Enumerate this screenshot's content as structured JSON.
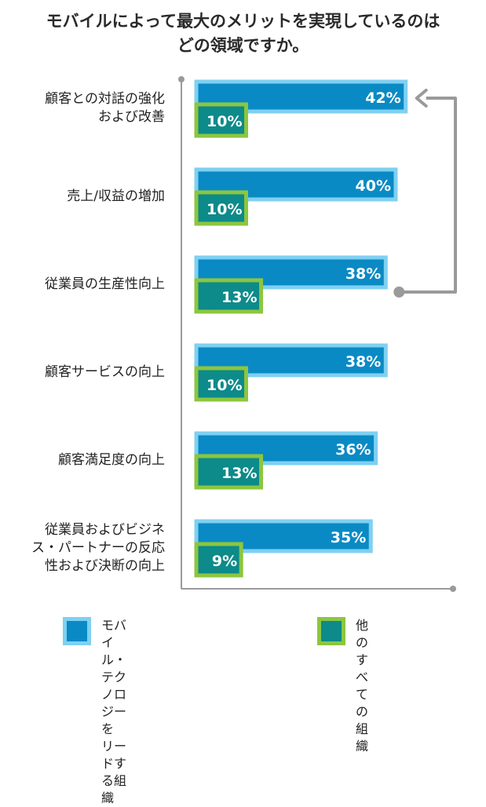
{
  "chart_data": {
    "type": "bar",
    "title_lines": [
      "モバイルによって最大のメリットを実現しているのは",
      "どの領域ですか。"
    ],
    "categories": [
      "顧客との対話の強化\nおよび改善",
      "売上/収益の増加",
      "従業員の生産性向上",
      "顧客サービスの向上",
      "顧客満足度の向上",
      "従業員およびビジネ\nス・パートナーの反応\n性および決断の向上"
    ],
    "series": [
      {
        "name": "モバイル・テクノロジーを\nリードする組織",
        "values": [
          42,
          40,
          38,
          38,
          36,
          35
        ],
        "labels": [
          "42%",
          "40%",
          "38%",
          "38%",
          "36%",
          "35%"
        ]
      },
      {
        "name": "他のすべ\nての組織",
        "values": [
          10,
          10,
          13,
          10,
          13,
          9
        ],
        "labels": [
          "10%",
          "10%",
          "13%",
          "10%",
          "13%",
          "9%"
        ]
      }
    ],
    "xlim": [
      0,
      42
    ],
    "grid": false,
    "legend_position": "bottom",
    "annotation": "arrow from 従業員の生産性向上 to 顧客との対話の強化および改善",
    "colors": {
      "leader_fill": "#0a8ac4",
      "leader_border": "#7fd0f2",
      "other_fill": "#0d8a8a",
      "other_border": "#8cc63f",
      "axis": "#9a9a9a",
      "bar_label": "#ffffff"
    }
  }
}
